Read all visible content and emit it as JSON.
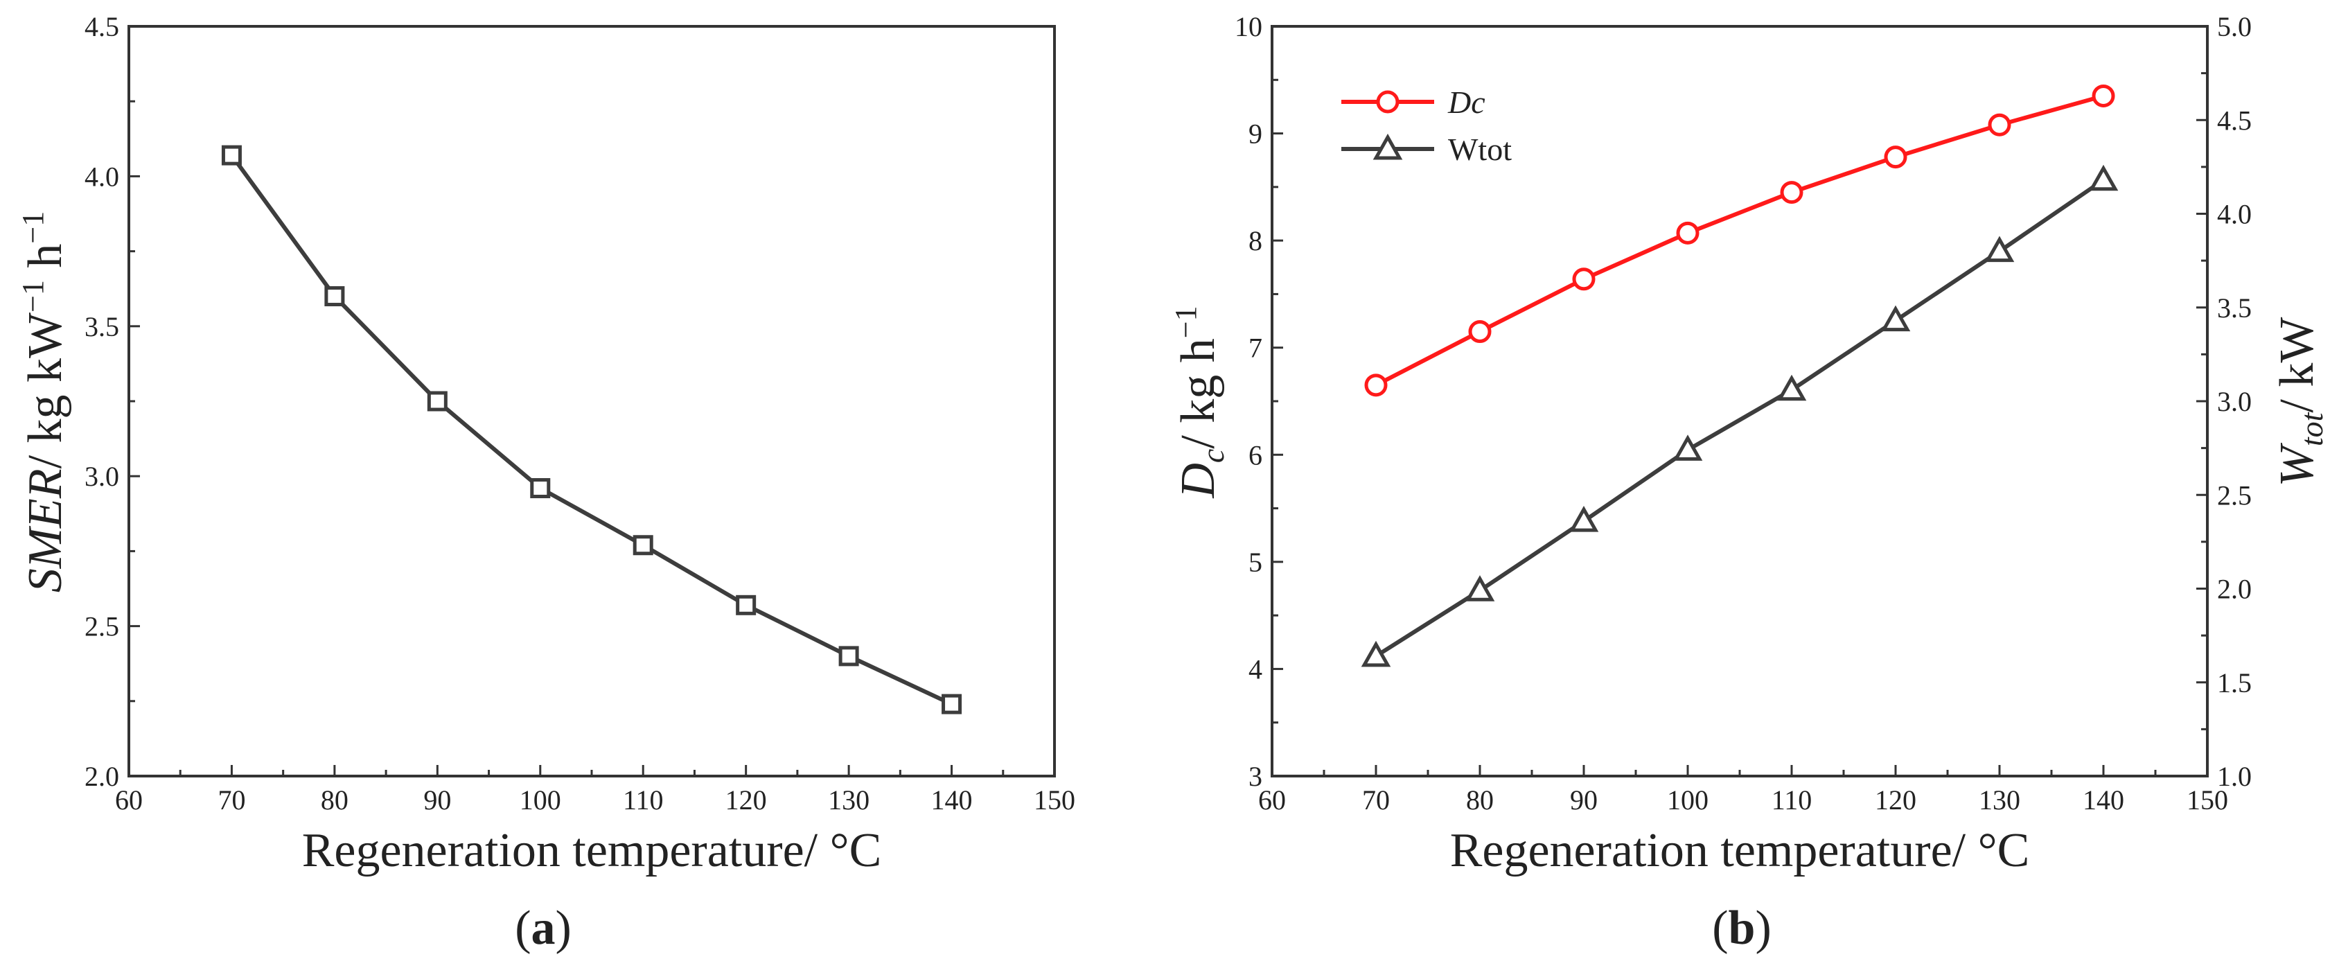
{
  "chart_data": [
    {
      "type": "line",
      "panel_label": "a",
      "xlabel": "Regeneration temperature/ °C",
      "ylabel": {
        "var": "SMER",
        "unit": "/ kg kW",
        "sup1": "−1",
        "mid": " h",
        "sup2": "−1"
      },
      "xlim": [
        60,
        150
      ],
      "ylim": [
        2.0,
        4.5
      ],
      "xticks": [
        "60",
        "70",
        "80",
        "90",
        "100",
        "110",
        "120",
        "130",
        "140",
        "150"
      ],
      "yticks": [
        "2.0",
        "2.5",
        "3.0",
        "3.5",
        "4.0",
        "4.5"
      ],
      "grid": false,
      "series": [
        {
          "name": "SMER",
          "marker": "square",
          "color": "#3d3d3d",
          "x": [
            70,
            80,
            90,
            100,
            110,
            120,
            130,
            140
          ],
          "y": [
            4.07,
            3.6,
            3.25,
            2.96,
            2.77,
            2.57,
            2.4,
            2.24
          ]
        }
      ]
    },
    {
      "type": "line",
      "panel_label": "b",
      "xlabel": "Regeneration temperature/ °C",
      "ylabel_left": {
        "var": "D",
        "sub": "c",
        "unit": "/ kg h",
        "sup": "−1"
      },
      "ylabel_right": {
        "var": "W",
        "sub": "tot",
        "unit": "/ kW"
      },
      "xlim": [
        60,
        150
      ],
      "ylim_left": [
        3,
        10
      ],
      "ylim_right": [
        1.0,
        5.0
      ],
      "xticks": [
        "60",
        "70",
        "80",
        "90",
        "100",
        "110",
        "120",
        "130",
        "140",
        "150"
      ],
      "yticks_left": [
        "3",
        "4",
        "5",
        "6",
        "7",
        "8",
        "9",
        "10"
      ],
      "yticks_right": [
        "1.0",
        "1.5",
        "2.0",
        "2.5",
        "3.0",
        "3.5",
        "4.0",
        "4.5",
        "5.0"
      ],
      "grid": false,
      "legend_position": "top-left",
      "series": [
        {
          "name": "Dc",
          "axis": "left",
          "marker": "circle",
          "color": "#ff1a1a",
          "x": [
            70,
            80,
            90,
            100,
            110,
            120,
            130,
            140
          ],
          "y": [
            6.65,
            7.15,
            7.64,
            8.07,
            8.45,
            8.78,
            9.08,
            9.35
          ]
        },
        {
          "name": "Wtot",
          "axis": "right",
          "marker": "triangle",
          "color": "#3d3d3d",
          "x": [
            70,
            80,
            90,
            100,
            110,
            120,
            130,
            140
          ],
          "y": [
            1.64,
            1.99,
            2.36,
            2.74,
            3.06,
            3.43,
            3.8,
            4.18
          ]
        }
      ]
    }
  ]
}
